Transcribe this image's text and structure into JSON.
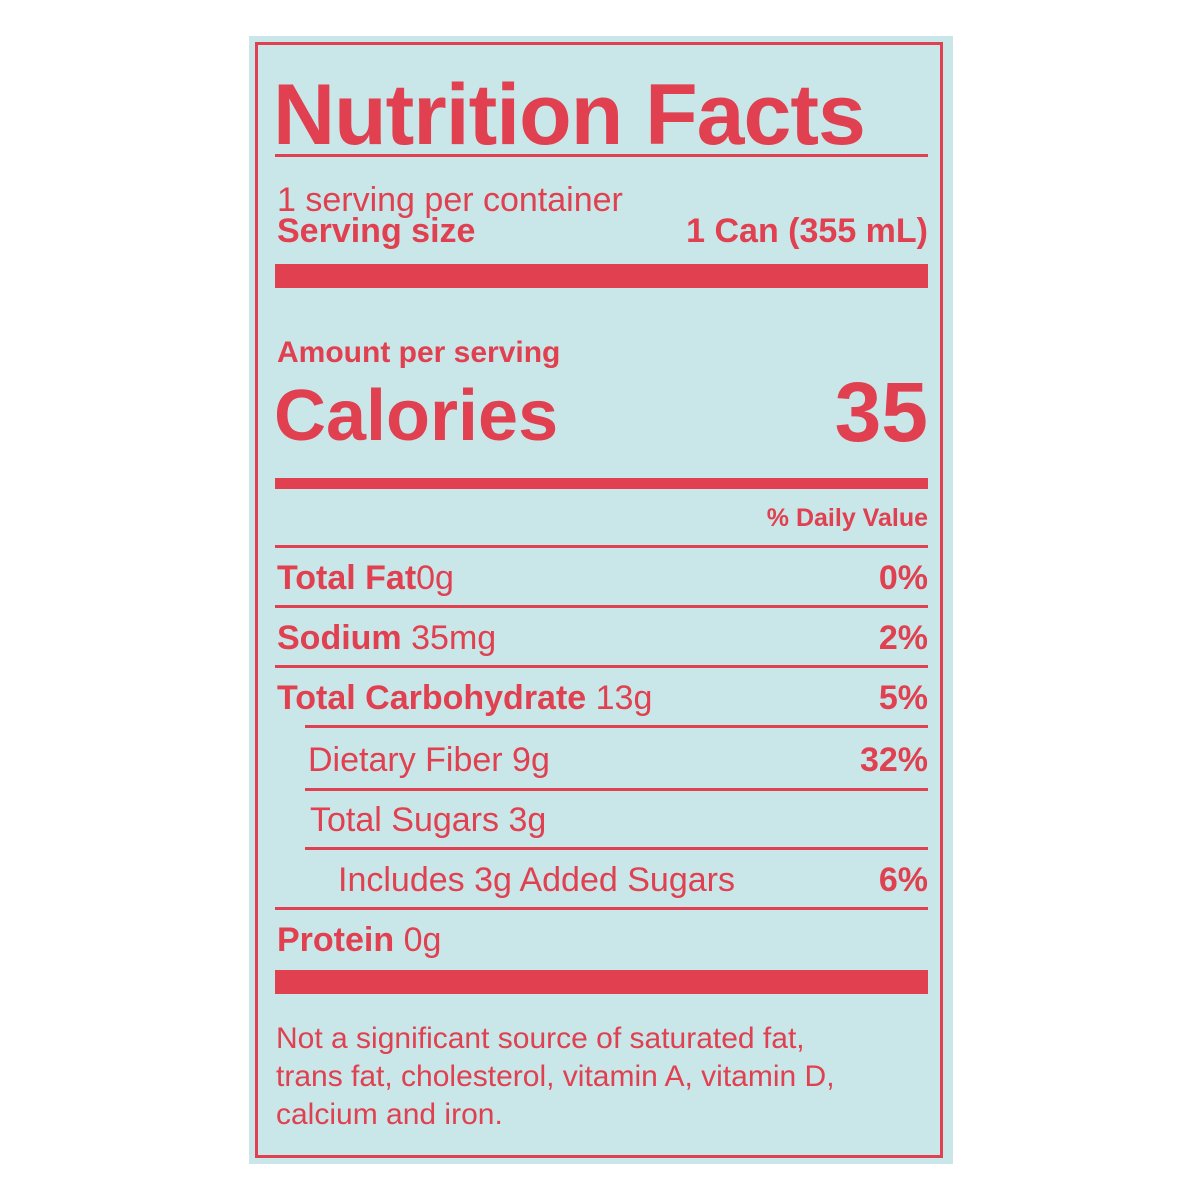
{
  "title": "Nutrition Facts",
  "servings_per_container": "1 serving per container",
  "serving_size": {
    "label": "Serving size",
    "value": "1 Can (355 mL)"
  },
  "amount_per_serving": "Amount per serving",
  "calories": {
    "label": "Calories",
    "value": "35"
  },
  "daily_value_header": "% Daily Value",
  "nutrients": [
    {
      "label": "Total Fat",
      "amount": "0g",
      "dv": "0%"
    },
    {
      "label": "Sodium",
      "amount": "35mg",
      "dv": "2%"
    },
    {
      "label": "Total Carbohydrate",
      "amount": "13g",
      "dv": "5%"
    },
    {
      "label": "Dietary Fiber 9g",
      "dv": "32%"
    },
    {
      "label": "Total Sugars 3g"
    },
    {
      "label": "Includes 3g Added Sugars",
      "dv": "6%"
    },
    {
      "label": "Protein",
      "amount": "0g"
    }
  ],
  "footnote": [
    "Not a significant source of saturated fat,",
    "trans fat, cholesterol, vitamin A, vitamin D,",
    "calcium and iron."
  ],
  "colors": {
    "ink": "#e0404f",
    "background": "#c9e6e8"
  }
}
